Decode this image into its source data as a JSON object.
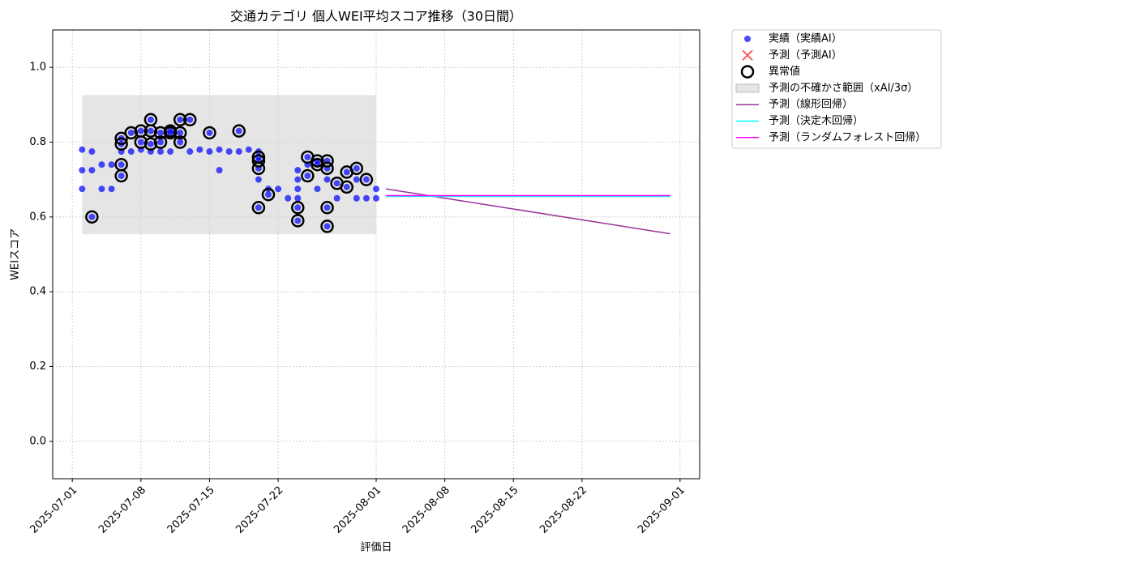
{
  "chart_data": {
    "type": "scatter",
    "title": "交通カテゴリ 個人WEI平均スコア推移（30日間）",
    "x_label": "評価日",
    "y_label": "WEIスコア",
    "xlim": [
      "2025-06-29",
      "2025-09-03"
    ],
    "xticks": [
      "2025-07-01",
      "2025-07-08",
      "2025-07-15",
      "2025-07-22",
      "2025-08-01",
      "2025-08-08",
      "2025-08-15",
      "2025-08-22",
      "2025-09-01"
    ],
    "ylim": [
      -0.1,
      1.1
    ],
    "yticks": [
      {
        "value": 0,
        "label": "0.0"
      },
      0.2,
      0.4,
      0.6,
      0.8,
      {
        "value": 1,
        "label": "1.0"
      }
    ],
    "grid": true,
    "legend_loc": "outside upper right",
    "series": [
      {
        "name": "実績（実績AI）",
        "kind": "scatter",
        "marker": "dot",
        "color": "#0000ff",
        "x": [
          "2025-07-02",
          "2025-07-02",
          "2025-07-02",
          "2025-07-03",
          "2025-07-03",
          "2025-07-03",
          "2025-07-04",
          "2025-07-04",
          "2025-07-05",
          "2025-07-05",
          "2025-07-06",
          "2025-07-06",
          "2025-07-06",
          "2025-07-06",
          "2025-07-06",
          "2025-07-07",
          "2025-07-07",
          "2025-07-08",
          "2025-07-08",
          "2025-07-08",
          "2025-07-09",
          "2025-07-09",
          "2025-07-09",
          "2025-07-09",
          "2025-07-10",
          "2025-07-10",
          "2025-07-10",
          "2025-07-11",
          "2025-07-11",
          "2025-07-11",
          "2025-07-12",
          "2025-07-12",
          "2025-07-12",
          "2025-07-13",
          "2025-07-13",
          "2025-07-14",
          "2025-07-15",
          "2025-07-15",
          "2025-07-16",
          "2025-07-16",
          "2025-07-17",
          "2025-07-18",
          "2025-07-18",
          "2025-07-19",
          "2025-07-20",
          "2025-07-20",
          "2025-07-20",
          "2025-07-20",
          "2025-07-20",
          "2025-07-20",
          "2025-07-21",
          "2025-07-21",
          "2025-07-22",
          "2025-07-23",
          "2025-07-24",
          "2025-07-24",
          "2025-07-24",
          "2025-07-24",
          "2025-07-24",
          "2025-07-24",
          "2025-07-25",
          "2025-07-25",
          "2025-07-25",
          "2025-07-26",
          "2025-07-26",
          "2025-07-26",
          "2025-07-27",
          "2025-07-27",
          "2025-07-27",
          "2025-07-27",
          "2025-07-27",
          "2025-07-28",
          "2025-07-28",
          "2025-07-29",
          "2025-07-29",
          "2025-07-30",
          "2025-07-30",
          "2025-07-30",
          "2025-07-31",
          "2025-07-31",
          "2025-08-01",
          "2025-08-01"
        ],
        "values": [
          0.78,
          0.725,
          0.675,
          0.775,
          0.725,
          0.6,
          0.74,
          0.675,
          0.675,
          0.74,
          0.775,
          0.74,
          0.71,
          0.795,
          0.81,
          0.775,
          0.825,
          0.78,
          0.83,
          0.8,
          0.86,
          0.795,
          0.775,
          0.83,
          0.775,
          0.825,
          0.8,
          0.825,
          0.83,
          0.775,
          0.8,
          0.86,
          0.825,
          0.775,
          0.86,
          0.78,
          0.825,
          0.775,
          0.78,
          0.725,
          0.775,
          0.83,
          0.775,
          0.78,
          0.775,
          0.76,
          0.75,
          0.625,
          0.73,
          0.7,
          0.66,
          0.675,
          0.675,
          0.65,
          0.675,
          0.625,
          0.725,
          0.7,
          0.59,
          0.65,
          0.76,
          0.71,
          0.74,
          0.75,
          0.675,
          0.74,
          0.75,
          0.73,
          0.625,
          0.575,
          0.7,
          0.69,
          0.65,
          0.68,
          0.72,
          0.73,
          0.7,
          0.65,
          0.7,
          0.65,
          0.65,
          0.675
        ]
      },
      {
        "name": "予測（予測AI）",
        "kind": "scatter",
        "marker": "x",
        "color": "#ff0000",
        "x": [],
        "values": []
      },
      {
        "name": "異常値",
        "kind": "scatter",
        "marker": "ring",
        "color": "#000000",
        "x": [
          "2025-07-03",
          "2025-07-06",
          "2025-07-06",
          "2025-07-06",
          "2025-07-06",
          "2025-07-07",
          "2025-07-08",
          "2025-07-08",
          "2025-07-09",
          "2025-07-09",
          "2025-07-09",
          "2025-07-10",
          "2025-07-10",
          "2025-07-11",
          "2025-07-11",
          "2025-07-12",
          "2025-07-12",
          "2025-07-12",
          "2025-07-13",
          "2025-07-15",
          "2025-07-18",
          "2025-07-20",
          "2025-07-20",
          "2025-07-20",
          "2025-07-20",
          "2025-07-21",
          "2025-07-24",
          "2025-07-24",
          "2025-07-25",
          "2025-07-25",
          "2025-07-26",
          "2025-07-26",
          "2025-07-27",
          "2025-07-27",
          "2025-07-27",
          "2025-07-27",
          "2025-07-28",
          "2025-07-29",
          "2025-07-29",
          "2025-07-30",
          "2025-07-31"
        ],
        "values": [
          0.6,
          0.74,
          0.71,
          0.795,
          0.81,
          0.825,
          0.83,
          0.8,
          0.86,
          0.795,
          0.83,
          0.825,
          0.8,
          0.825,
          0.83,
          0.8,
          0.86,
          0.825,
          0.86,
          0.825,
          0.83,
          0.76,
          0.75,
          0.625,
          0.73,
          0.66,
          0.625,
          0.59,
          0.76,
          0.71,
          0.75,
          0.74,
          0.75,
          0.73,
          0.625,
          0.575,
          0.69,
          0.68,
          0.72,
          0.73,
          0.7
        ]
      },
      {
        "name": "予測の不確かさ範囲（xAI/3σ）",
        "kind": "band",
        "color": "#d3d3d3",
        "x": [
          "2025-07-02",
          "2025-08-01"
        ],
        "lower": [
          0.554,
          0.554
        ],
        "upper": [
          0.926,
          0.926
        ]
      },
      {
        "name": "予測（線形回帰）",
        "kind": "line",
        "color": "#993399",
        "x": [
          "2025-08-02",
          "2025-08-31"
        ],
        "values": [
          0.675,
          0.555
        ]
      },
      {
        "name": "予測（決定木回帰）",
        "kind": "line",
        "color": "#00ffff",
        "x": [
          "2025-08-02",
          "2025-08-31"
        ],
        "values": [
          0.655,
          0.655
        ]
      },
      {
        "name": "予測（ランダムフォレスト回帰）",
        "kind": "line",
        "color": "#ff00ff",
        "x": [
          "2025-08-02",
          "2025-08-31"
        ],
        "values": [
          0.657,
          0.657
        ]
      }
    ]
  }
}
